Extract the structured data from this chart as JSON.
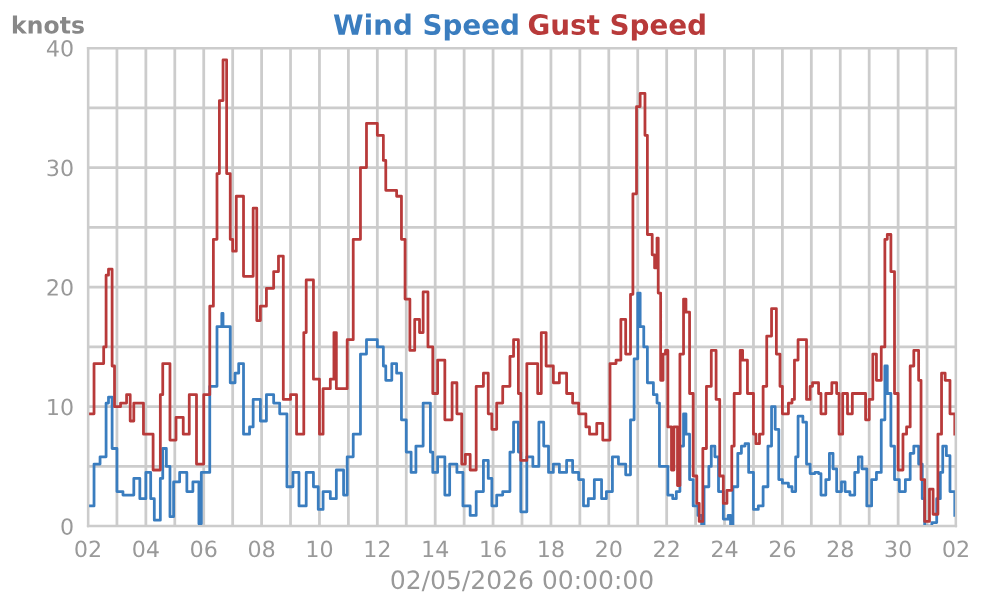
{
  "chart_data": {
    "type": "step",
    "xlabel": "02/05/2026 00:00:00",
    "ylabel": "knots",
    "legend": "top",
    "grid": true,
    "xlim": [
      "2026-04-02",
      "2026-05-02"
    ],
    "ylim": [
      0,
      40
    ],
    "xticks": [
      {
        "value": "2026-04-02",
        "label": "02"
      },
      {
        "value": "2026-04-03",
        "label": null
      },
      {
        "value": "2026-04-04",
        "label": "04"
      },
      {
        "value": "2026-04-05",
        "label": null
      },
      {
        "value": "2026-04-06",
        "label": "06"
      },
      {
        "value": "2026-04-07",
        "label": null
      },
      {
        "value": "2026-04-08",
        "label": "08"
      },
      {
        "value": "2026-04-09",
        "label": null
      },
      {
        "value": "2026-04-10",
        "label": "10"
      },
      {
        "value": "2026-04-11",
        "label": null
      },
      {
        "value": "2026-04-12",
        "label": "12"
      },
      {
        "value": "2026-04-13",
        "label": null
      },
      {
        "value": "2026-04-14",
        "label": "14"
      },
      {
        "value": "2026-04-15",
        "label": null
      },
      {
        "value": "2026-04-16",
        "label": "16"
      },
      {
        "value": "2026-04-17",
        "label": null
      },
      {
        "value": "2026-04-18",
        "label": "18"
      },
      {
        "value": "2026-04-19",
        "label": null
      },
      {
        "value": "2026-04-20",
        "label": "20"
      },
      {
        "value": "2026-04-21",
        "label": null
      },
      {
        "value": "2026-04-22",
        "label": "22"
      },
      {
        "value": "2026-04-23",
        "label": null
      },
      {
        "value": "2026-04-24",
        "label": "24"
      },
      {
        "value": "2026-04-25",
        "label": null
      },
      {
        "value": "2026-04-26",
        "label": "26"
      },
      {
        "value": "2026-04-27",
        "label": null
      },
      {
        "value": "2026-04-28",
        "label": "28"
      },
      {
        "value": "2026-04-29",
        "label": null
      },
      {
        "value": "2026-04-30",
        "label": "30"
      },
      {
        "value": "2026-05-01",
        "label": null
      },
      {
        "value": "2026-05-02",
        "label": "02"
      }
    ],
    "yticks": [
      0,
      {
        "value": 5,
        "label": null
      },
      10,
      {
        "value": 15,
        "label": null
      },
      20,
      {
        "value": 25,
        "label": null
      },
      30,
      {
        "value": 35,
        "label": null
      },
      40
    ],
    "series": [
      {
        "name": "Wind Speed",
        "color": "#3a7dbf",
        "x": [
          "2026-04-02T02:00",
          "2026-04-02T05:00",
          "2026-04-02T10:00",
          "2026-04-02T13:00",
          "2026-04-02T15:00",
          "2026-04-02T17:00",
          "2026-04-02T20:00",
          "2026-04-03T00:00",
          "2026-04-03T05:00",
          "2026-04-03T14:00",
          "2026-04-03T16:00",
          "2026-04-03T19:00",
          "2026-04-04T00:00",
          "2026-04-04T04:00",
          "2026-04-04T07:00",
          "2026-04-04T12:00",
          "2026-04-04T14:00",
          "2026-04-04T17:00",
          "2026-04-04T20:00",
          "2026-04-04T23:00",
          "2026-04-05T04:00",
          "2026-04-05T10:00",
          "2026-04-05T15:00",
          "2026-04-05T20:00",
          "2026-04-05T22:00",
          "2026-04-06T05:00",
          "2026-04-06T11:00",
          "2026-04-06T15:00",
          "2026-04-06T16:00",
          "2026-04-06T22:00",
          "2026-04-07T02:00",
          "2026-04-07T05:00",
          "2026-04-07T09:00",
          "2026-04-07T14:00",
          "2026-04-07T17:00",
          "2026-04-07T23:00",
          "2026-04-08T04:00",
          "2026-04-08T10:00",
          "2026-04-08T15:00",
          "2026-04-08T21:00",
          "2026-04-09T02:00",
          "2026-04-09T07:00",
          "2026-04-09T13:00",
          "2026-04-09T19:00",
          "2026-04-09T23:00",
          "2026-04-10T03:00",
          "2026-04-10T09:00",
          "2026-04-10T14:00",
          "2026-04-10T20:00",
          "2026-04-10T23:00",
          "2026-04-11T04:00",
          "2026-04-11T10:00",
          "2026-04-11T15:00",
          "2026-04-12T00:00",
          "2026-04-12T05:00",
          "2026-04-12T07:00",
          "2026-04-12T12:00",
          "2026-04-12T16:00",
          "2026-04-12T20:00",
          "2026-04-13T00:00",
          "2026-04-13T04:00",
          "2026-04-13T08:00",
          "2026-04-13T14:00",
          "2026-04-13T20:00",
          "2026-04-13T22:00",
          "2026-04-14T02:00",
          "2026-04-14T08:00",
          "2026-04-14T12:00",
          "2026-04-14T18:00",
          "2026-04-14T23:00",
          "2026-04-15T05:00",
          "2026-04-15T10:00",
          "2026-04-15T16:00",
          "2026-04-15T20:00",
          "2026-04-15T23:00",
          "2026-04-16T03:00",
          "2026-04-16T08:00",
          "2026-04-16T14:00",
          "2026-04-16T17:00",
          "2026-04-16T21:00",
          "2026-04-16T23:00",
          "2026-04-17T04:00",
          "2026-04-17T09:00",
          "2026-04-17T14:00",
          "2026-04-17T18:00",
          "2026-04-17T22:00",
          "2026-04-18T02:00",
          "2026-04-18T07:00",
          "2026-04-18T13:00",
          "2026-04-18T18:00",
          "2026-04-18T23:00",
          "2026-04-19T03:00",
          "2026-04-19T07:00",
          "2026-04-19T12:00",
          "2026-04-19T18:00",
          "2026-04-19T22:00",
          "2026-04-20T03:00",
          "2026-04-20T08:00",
          "2026-04-20T14:00",
          "2026-04-20T18:00",
          "2026-04-20T21:00",
          "2026-04-21T00:00",
          "2026-04-21T02:00",
          "2026-04-21T05:00",
          "2026-04-21T08:00",
          "2026-04-21T13:00",
          "2026-04-21T16:00",
          "2026-04-21T18:00",
          "2026-04-21T22:00",
          "2026-04-22T01:00",
          "2026-04-22T05:00",
          "2026-04-22T08:00",
          "2026-04-22T11:00",
          "2026-04-22T14:00",
          "2026-04-22T16:00",
          "2026-04-22T19:00",
          "2026-04-22T22:00",
          "2026-04-23T02:00",
          "2026-04-23T05:00",
          "2026-04-23T07:00",
          "2026-04-23T11:00",
          "2026-04-23T13:00",
          "2026-04-23T16:00",
          "2026-04-23T19:00",
          "2026-04-23T23:00",
          "2026-04-24T03:00",
          "2026-04-24T05:00",
          "2026-04-24T07:00",
          "2026-04-24T11:00",
          "2026-04-24T14:00",
          "2026-04-24T17:00",
          "2026-04-24T20:00",
          "2026-04-25T00:00",
          "2026-04-25T04:00",
          "2026-04-25T08:00",
          "2026-04-25T12:00",
          "2026-04-25T15:00",
          "2026-04-25T18:00",
          "2026-04-25T21:00",
          "2026-04-26T00:00",
          "2026-04-26T05:00",
          "2026-04-26T08:00",
          "2026-04-26T11:00",
          "2026-04-26T13:00",
          "2026-04-26T17:00",
          "2026-04-26T20:00",
          "2026-04-26T23:00",
          "2026-04-27T03:00",
          "2026-04-27T06:00",
          "2026-04-27T08:00",
          "2026-04-27T12:00",
          "2026-04-27T15:00",
          "2026-04-27T18:00",
          "2026-04-27T21:00",
          "2026-04-28T01:00",
          "2026-04-28T04:00",
          "2026-04-28T08:00",
          "2026-04-28T12:00",
          "2026-04-28T15:00",
          "2026-04-28T18:00",
          "2026-04-28T22:00",
          "2026-04-29T02:00",
          "2026-04-29T06:00",
          "2026-04-29T10:00",
          "2026-04-29T13:00",
          "2026-04-29T15:00",
          "2026-04-29T18:00",
          "2026-04-29T21:00",
          "2026-04-30T01:00",
          "2026-04-30T06:00",
          "2026-04-30T10:00",
          "2026-04-30T13:00",
          "2026-04-30T17:00",
          "2026-04-30T20:00",
          "2026-04-30T22:00",
          "2026-05-01T04:00",
          "2026-05-01T08:00",
          "2026-05-01T11:00",
          "2026-05-01T13:00",
          "2026-05-01T16:00",
          "2026-05-01T19:00",
          "2026-05-01T23:00"
        ],
        "values": [
          1.7,
          5.2,
          5.8,
          5.8,
          10.3,
          10.8,
          6.5,
          2.9,
          2.6,
          4.0,
          4.0,
          2.3,
          4.5,
          2.3,
          0.5,
          4.0,
          6.5,
          5.0,
          0.8,
          3.7,
          4.5,
          2.9,
          3.7,
          0.2,
          4.5,
          11.7,
          16.7,
          17.8,
          16.7,
          12.0,
          12.8,
          13.6,
          7.7,
          8.3,
          10.6,
          8.8,
          11.0,
          10.3,
          9.4,
          3.3,
          4.5,
          1.7,
          4.5,
          3.3,
          1.4,
          2.9,
          2.3,
          4.7,
          2.6,
          5.8,
          7.7,
          14.4,
          15.6,
          15.0,
          13.4,
          12.2,
          13.6,
          12.8,
          8.9,
          6.2,
          4.5,
          6.7,
          10.3,
          6.2,
          4.5,
          5.8,
          2.6,
          5.2,
          4.5,
          1.7,
          0.9,
          2.9,
          5.5,
          4.0,
          1.7,
          2.6,
          2.9,
          6.2,
          8.7,
          6.2,
          1.2,
          5.8,
          5.0,
          8.7,
          6.7,
          4.5,
          5.2,
          4.5,
          5.5,
          4.5,
          3.9,
          1.7,
          2.3,
          3.9,
          2.3,
          2.9,
          5.8,
          5.2,
          4.3,
          8.9,
          14.0,
          19.5,
          16.7,
          15.0,
          12.0,
          11.0,
          10.3,
          5.0,
          5.0,
          2.6,
          2.3,
          2.9,
          6.7,
          9.4,
          7.7,
          3.9,
          1.7,
          0.9,
          0.0,
          3.3,
          5.0,
          6.7,
          5.8,
          2.9,
          0.6,
          0.9,
          0.0,
          3.3,
          6.1,
          6.7,
          6.9,
          4.5,
          1.4,
          1.7,
          3.3,
          6.7,
          10.0,
          8.1,
          3.9,
          3.6,
          3.3,
          2.9,
          5.8,
          9.2,
          8.7,
          5.2,
          4.4,
          4.5,
          4.4,
          2.6,
          3.9,
          6.1,
          4.8,
          2.9,
          3.7,
          2.9,
          2.6,
          4.5,
          5.8,
          4.8,
          1.7,
          3.9,
          4.5,
          8.9,
          13.4,
          11.1,
          6.7,
          3.9,
          2.9,
          3.9,
          6.1,
          6.7,
          5.2,
          2.3,
          0.0,
          0.3,
          2.3,
          4.5,
          6.7,
          5.9,
          2.9,
          0.9
        ]
      },
      {
        "name": "Gust Speed",
        "color": "#b83a3a",
        "x": [
          "2026-04-02T02:00",
          "2026-04-02T05:00",
          "2026-04-02T10:00",
          "2026-04-02T13:00",
          "2026-04-02T15:00",
          "2026-04-02T17:00",
          "2026-04-02T20:00",
          "2026-04-02T22:00",
          "2026-04-03T03:00",
          "2026-04-03T08:00",
          "2026-04-03T11:00",
          "2026-04-03T14:00",
          "2026-04-03T22:00",
          "2026-04-04T06:00",
          "2026-04-04T12:00",
          "2026-04-04T14:00",
          "2026-04-04T17:00",
          "2026-04-04T20:00",
          "2026-04-05T01:00",
          "2026-04-05T07:00",
          "2026-04-05T12:00",
          "2026-04-05T18:00",
          "2026-04-06T00:00",
          "2026-04-06T05:00",
          "2026-04-06T08:00",
          "2026-04-06T11:00",
          "2026-04-06T13:00",
          "2026-04-06T16:00",
          "2026-04-06T19:00",
          "2026-04-06T22:00",
          "2026-04-07T00:00",
          "2026-04-07T03:00",
          "2026-04-07T09:00",
          "2026-04-07T14:00",
          "2026-04-07T17:00",
          "2026-04-07T20:00",
          "2026-04-07T23:00",
          "2026-04-08T04:00",
          "2026-04-08T10:00",
          "2026-04-08T14:00",
          "2026-04-08T18:00",
          "2026-04-09T00:00",
          "2026-04-09T05:00",
          "2026-04-09T11:00",
          "2026-04-09T13:00",
          "2026-04-09T19:00",
          "2026-04-10T00:00",
          "2026-04-10T03:00",
          "2026-04-10T09:00",
          "2026-04-10T12:00",
          "2026-04-10T14:00",
          "2026-04-10T20:00",
          "2026-04-10T23:00",
          "2026-04-11T04:00",
          "2026-04-11T10:00",
          "2026-04-11T15:00",
          "2026-04-12T00:00",
          "2026-04-12T05:00",
          "2026-04-12T07:00",
          "2026-04-12T16:00",
          "2026-04-12T20:00",
          "2026-04-12T23:00",
          "2026-04-13T03:00",
          "2026-04-13T07:00",
          "2026-04-13T11:00",
          "2026-04-13T14:00",
          "2026-04-13T18:00",
          "2026-04-13T22:00",
          "2026-04-14T02:00",
          "2026-04-14T08:00",
          "2026-04-14T14:00",
          "2026-04-14T18:00",
          "2026-04-14T22:00",
          "2026-04-15T01:00",
          "2026-04-15T05:00",
          "2026-04-15T10:00",
          "2026-04-15T16:00",
          "2026-04-15T20:00",
          "2026-04-15T23:00",
          "2026-04-16T03:00",
          "2026-04-16T08:00",
          "2026-04-16T14:00",
          "2026-04-16T17:00",
          "2026-04-16T21:00",
          "2026-04-16T23:00",
          "2026-04-17T04:00",
          "2026-04-17T09:00",
          "2026-04-17T13:00",
          "2026-04-17T16:00",
          "2026-04-17T20:00",
          "2026-04-18T02:00",
          "2026-04-18T07:00",
          "2026-04-18T13:00",
          "2026-04-18T18:00",
          "2026-04-18T23:00",
          "2026-04-19T05:00",
          "2026-04-19T08:00",
          "2026-04-19T14:00",
          "2026-04-19T19:00",
          "2026-04-20T01:00",
          "2026-04-20T06:00",
          "2026-04-20T10:00",
          "2026-04-20T14:00",
          "2026-04-20T18:00",
          "2026-04-20T20:00",
          "2026-04-20T23:00",
          "2026-04-21T02:00",
          "2026-04-21T06:00",
          "2026-04-21T08:00",
          "2026-04-21T12:00",
          "2026-04-21T14:00",
          "2026-04-21T16:00",
          "2026-04-21T17:00",
          "2026-04-21T19:00",
          "2026-04-21T21:00",
          "2026-04-21T23:00",
          "2026-04-22T01:00",
          "2026-04-22T04:00",
          "2026-04-22T06:00",
          "2026-04-22T09:00",
          "2026-04-22T11:00",
          "2026-04-22T14:00",
          "2026-04-22T16:00",
          "2026-04-22T19:00",
          "2026-04-22T22:00",
          "2026-04-23T01:00",
          "2026-04-23T03:00",
          "2026-04-23T06:00",
          "2026-04-23T09:00",
          "2026-04-23T13:00",
          "2026-04-23T17:00",
          "2026-04-23T20:00",
          "2026-04-23T23:00",
          "2026-04-24T02:00",
          "2026-04-24T06:00",
          "2026-04-24T08:00",
          "2026-04-24T13:00",
          "2026-04-24T15:00",
          "2026-04-24T19:00",
          "2026-04-25T00:00",
          "2026-04-25T02:00",
          "2026-04-25T05:00",
          "2026-04-25T08:00",
          "2026-04-25T11:00",
          "2026-04-25T15:00",
          "2026-04-25T19:00",
          "2026-04-25T22:00",
          "2026-04-26T00:00",
          "2026-04-26T05:00",
          "2026-04-26T08:00",
          "2026-04-26T10:00",
          "2026-04-26T13:00",
          "2026-04-26T17:00",
          "2026-04-26T20:00",
          "2026-04-26T23:00",
          "2026-04-27T01:00",
          "2026-04-27T06:00",
          "2026-04-27T08:00",
          "2026-04-27T12:00",
          "2026-04-27T17:00",
          "2026-04-27T21:00",
          "2026-04-27T23:00",
          "2026-04-28T02:00",
          "2026-04-28T06:00",
          "2026-04-28T10:00",
          "2026-04-28T17:00",
          "2026-04-28T21:00",
          "2026-04-29T00:00",
          "2026-04-29T03:00",
          "2026-04-29T06:00",
          "2026-04-29T10:00",
          "2026-04-29T13:00",
          "2026-04-29T15:00",
          "2026-04-29T18:00",
          "2026-04-29T21:00",
          "2026-04-30T00:00",
          "2026-04-30T04:00",
          "2026-04-30T07:00",
          "2026-04-30T10:00",
          "2026-04-30T13:00",
          "2026-04-30T17:00",
          "2026-04-30T19:00",
          "2026-04-30T22:00",
          "2026-05-01T02:00",
          "2026-05-01T05:00",
          "2026-05-01T09:00",
          "2026-05-01T12:00",
          "2026-05-01T15:00",
          "2026-05-01T19:00",
          "2026-05-01T23:00"
        ],
        "values": [
          9.4,
          13.6,
          13.6,
          15.0,
          21.0,
          21.5,
          13.4,
          10.0,
          10.3,
          11.0,
          8.8,
          10.3,
          7.7,
          4.7,
          11.0,
          13.6,
          13.6,
          7.2,
          9.1,
          7.7,
          11.0,
          5.2,
          11.0,
          18.4,
          24.0,
          29.5,
          35.6,
          39.0,
          29.5,
          24.0,
          23.0,
          27.6,
          20.9,
          20.9,
          26.6,
          17.2,
          18.4,
          19.9,
          21.3,
          22.6,
          10.6,
          11.0,
          7.7,
          16.2,
          20.6,
          12.3,
          7.7,
          11.5,
          12.3,
          16.2,
          11.5,
          11.5,
          15.6,
          24.0,
          30.0,
          33.7,
          32.7,
          30.6,
          28.1,
          27.6,
          24.0,
          19.0,
          14.7,
          17.3,
          16.2,
          19.6,
          15.0,
          11.1,
          13.9,
          8.9,
          12.0,
          9.4,
          5.2,
          6.0,
          4.7,
          11.7,
          12.8,
          9.4,
          8.1,
          10.3,
          11.7,
          14.2,
          15.6,
          11.1,
          5.5,
          13.6,
          13.6,
          11.1,
          16.2,
          13.4,
          12.0,
          12.8,
          11.1,
          10.3,
          9.4,
          8.3,
          7.7,
          8.6,
          7.2,
          13.6,
          13.9,
          17.3,
          14.4,
          19.4,
          27.8,
          35.1,
          36.2,
          32.7,
          24.4,
          22.7,
          21.6,
          24.1,
          19.5,
          12.2,
          14.4,
          14.7,
          8.3,
          4.7,
          8.3,
          3.4,
          14.4,
          19.0,
          17.9,
          11.1,
          4.2,
          1.9,
          0.4,
          6.5,
          11.7,
          14.7,
          10.6,
          4.2,
          1.9,
          3.0,
          6.7,
          11.1,
          14.7,
          13.9,
          11.1,
          7.7,
          6.9,
          7.7,
          11.7,
          15.9,
          18.2,
          14.4,
          11.7,
          9.4,
          10.3,
          10.6,
          13.9,
          15.6,
          15.6,
          10.6,
          11.7,
          12.0,
          11.1,
          9.4,
          11.1,
          12.0,
          11.1,
          7.7,
          11.1,
          9.4,
          11.1,
          11.1,
          8.9,
          10.6,
          14.4,
          12.2,
          15.0,
          24.0,
          24.4,
          21.3,
          11.1,
          4.7,
          7.7,
          8.3,
          13.4,
          14.7,
          12.2,
          3.9,
          0.4,
          3.1,
          1.0,
          7.7,
          12.8,
          12.2,
          9.4,
          7.7
        ]
      }
    ]
  }
}
